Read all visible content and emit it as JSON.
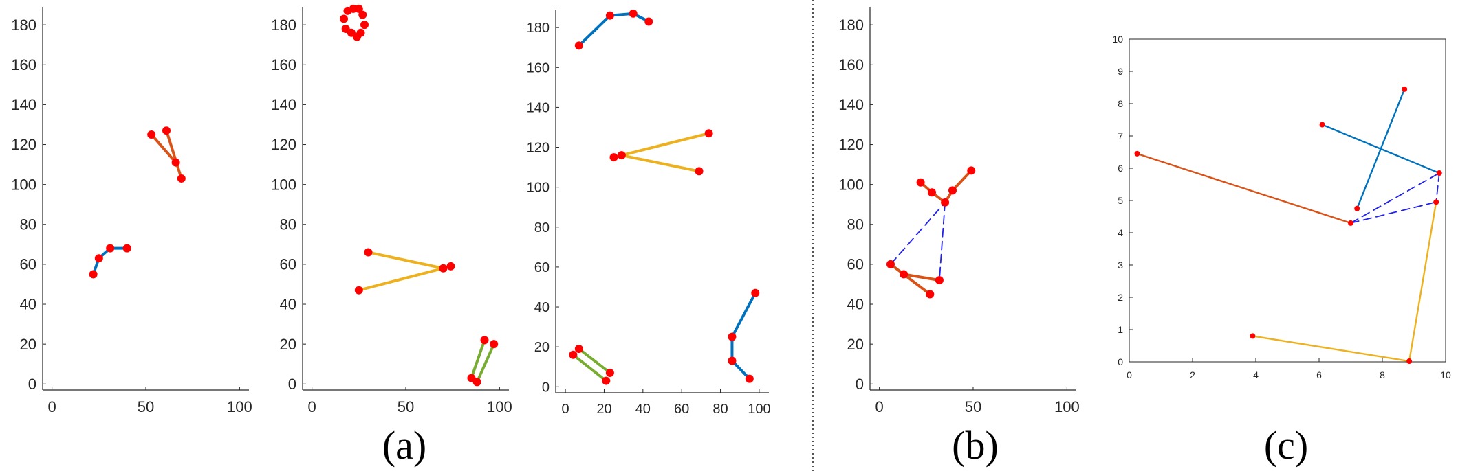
{
  "captions": {
    "a": "(a)",
    "b": "(b)",
    "c": "(c)"
  },
  "colors": {
    "point": "#ff0000",
    "blue": "#0072bd",
    "orange": "#d95319",
    "yellow": "#edb120",
    "green": "#77ac30",
    "dashed": "#2222ee",
    "axis": "#262626",
    "separator": "#555555"
  },
  "chart_data": [
    {
      "id": "a1",
      "type": "scatter",
      "subplot": "a",
      "xlim": [
        -5,
        105
      ],
      "ylim": [
        -3,
        189
      ],
      "xticks": [
        0,
        50,
        100
      ],
      "yticks": [
        0,
        20,
        40,
        60,
        80,
        100,
        120,
        140,
        160,
        180
      ],
      "series": [
        {
          "color": "blue",
          "points": [
            [
              22,
              55
            ],
            [
              25,
              63
            ],
            [
              31,
              68
            ],
            [
              40,
              68
            ]
          ],
          "connect": [
            [
              0,
              1
            ],
            [
              1,
              2
            ],
            [
              2,
              3
            ]
          ]
        },
        {
          "color": "orange",
          "points": [
            [
              53,
              125
            ],
            [
              61,
              127
            ],
            [
              66,
              111
            ],
            [
              69,
              103
            ]
          ],
          "connect": [
            [
              0,
              2
            ],
            [
              1,
              3
            ]
          ]
        }
      ]
    },
    {
      "id": "a2",
      "type": "scatter",
      "subplot": "a",
      "xlim": [
        -5,
        105
      ],
      "ylim": [
        -3,
        189
      ],
      "xticks": [
        0,
        50,
        100
      ],
      "yticks": [
        0,
        20,
        40,
        60,
        80,
        100,
        120,
        140,
        160,
        180
      ],
      "series": [
        {
          "color": "point",
          "points": [
            [
              17,
              183
            ],
            [
              19,
              187
            ],
            [
              22,
              188
            ],
            [
              25,
              188
            ],
            [
              27,
              185
            ],
            [
              28,
              180
            ],
            [
              26,
              176
            ],
            [
              24,
              174
            ],
            [
              21,
              176
            ],
            [
              18,
              178
            ]
          ],
          "connect": []
        },
        {
          "color": "yellow",
          "points": [
            [
              30,
              66
            ],
            [
              70,
              58
            ],
            [
              74,
              59
            ],
            [
              25,
              47
            ]
          ],
          "connect": [
            [
              0,
              1
            ],
            [
              3,
              2
            ]
          ]
        },
        {
          "color": "green",
          "points": [
            [
              85,
              3
            ],
            [
              88,
              1
            ],
            [
              92,
              22
            ],
            [
              97,
              20
            ]
          ],
          "connect": [
            [
              0,
              2
            ],
            [
              1,
              3
            ]
          ]
        }
      ]
    },
    {
      "id": "a3",
      "type": "scatter",
      "subplot": "a",
      "xlim": [
        -5,
        105
      ],
      "ylim": [
        -3,
        189
      ],
      "xticks": [
        0,
        20,
        40,
        60,
        80,
        100
      ],
      "yticks": [
        0,
        20,
        40,
        60,
        80,
        100,
        120,
        140,
        160,
        180
      ],
      "series": [
        {
          "color": "blue",
          "points": [
            [
              7,
              171
            ],
            [
              23,
              186
            ],
            [
              35,
              187
            ],
            [
              43,
              183
            ]
          ],
          "connect": [
            [
              0,
              1
            ],
            [
              1,
              2
            ],
            [
              2,
              3
            ]
          ]
        },
        {
          "color": "yellow",
          "points": [
            [
              25,
              115
            ],
            [
              29,
              116
            ],
            [
              74,
              127
            ],
            [
              69,
              108
            ]
          ],
          "connect": [
            [
              0,
              1
            ],
            [
              1,
              2
            ],
            [
              1,
              3
            ]
          ]
        },
        {
          "color": "green",
          "points": [
            [
              4,
              16
            ],
            [
              7,
              19
            ],
            [
              21,
              3
            ],
            [
              23,
              7
            ]
          ],
          "connect": [
            [
              0,
              2
            ],
            [
              1,
              3
            ]
          ]
        },
        {
          "color": "blue",
          "points": [
            [
              86,
              25
            ],
            [
              98,
              47
            ],
            [
              86,
              13
            ],
            [
              95,
              4
            ]
          ],
          "connect": [
            [
              0,
              1
            ],
            [
              0,
              2
            ],
            [
              2,
              3
            ]
          ]
        }
      ]
    },
    {
      "id": "b",
      "type": "scatter",
      "subplot": "b",
      "xlim": [
        -5,
        105
      ],
      "ylim": [
        -3,
        189
      ],
      "xticks": [
        0,
        50,
        100
      ],
      "yticks": [
        0,
        20,
        40,
        60,
        80,
        100,
        120,
        140,
        160,
        180
      ],
      "series": [
        {
          "color": "orange",
          "points": [
            [
              22,
              101
            ],
            [
              28,
              96
            ],
            [
              35,
              91
            ],
            [
              39,
              97
            ],
            [
              49,
              107
            ]
          ],
          "connect": [
            [
              0,
              1
            ],
            [
              1,
              2
            ],
            [
              2,
              3
            ],
            [
              3,
              4
            ]
          ]
        },
        {
          "color": "orange",
          "points": [
            [
              6,
              60
            ],
            [
              13,
              55
            ],
            [
              27,
              45
            ],
            [
              32,
              52
            ]
          ],
          "connect": [
            [
              0,
              1
            ],
            [
              1,
              2
            ],
            [
              1,
              3
            ]
          ]
        },
        {
          "color": "dashed",
          "style": "dashed",
          "points": [
            [
              6,
              60
            ],
            [
              35,
              91
            ],
            [
              32,
              52
            ]
          ],
          "connect": [
            [
              0,
              1
            ],
            [
              1,
              2
            ]
          ]
        }
      ]
    },
    {
      "id": "c",
      "type": "scatter",
      "subplot": "c",
      "xlim": [
        0,
        10
      ],
      "ylim": [
        0,
        10
      ],
      "xticks": [
        0,
        2,
        4,
        6,
        8,
        10
      ],
      "yticks": [
        0,
        1,
        2,
        3,
        4,
        5,
        6,
        7,
        8,
        9,
        10
      ],
      "series": [
        {
          "color": "blue",
          "points": [
            [
              6.1,
              7.35
            ],
            [
              9.8,
              5.85
            ],
            [
              8.7,
              8.45
            ],
            [
              7.2,
              4.75
            ]
          ],
          "connect": [
            [
              0,
              1
            ],
            [
              2,
              3
            ]
          ]
        },
        {
          "color": "orange",
          "points": [
            [
              0.25,
              6.45
            ],
            [
              7.0,
              4.3
            ]
          ],
          "connect": [
            [
              0,
              1
            ]
          ]
        },
        {
          "color": "yellow",
          "points": [
            [
              3.9,
              0.8
            ],
            [
              8.85,
              0.02
            ],
            [
              9.7,
              4.95
            ]
          ],
          "connect": [
            [
              0,
              1
            ],
            [
              1,
              2
            ]
          ]
        },
        {
          "color": "dashed",
          "style": "dashed",
          "points": [
            [
              7.0,
              4.3
            ],
            [
              9.8,
              5.85
            ],
            [
              9.7,
              4.95
            ]
          ],
          "connect": [
            [
              0,
              1
            ],
            [
              0,
              2
            ],
            [
              1,
              2
            ]
          ]
        }
      ]
    }
  ]
}
